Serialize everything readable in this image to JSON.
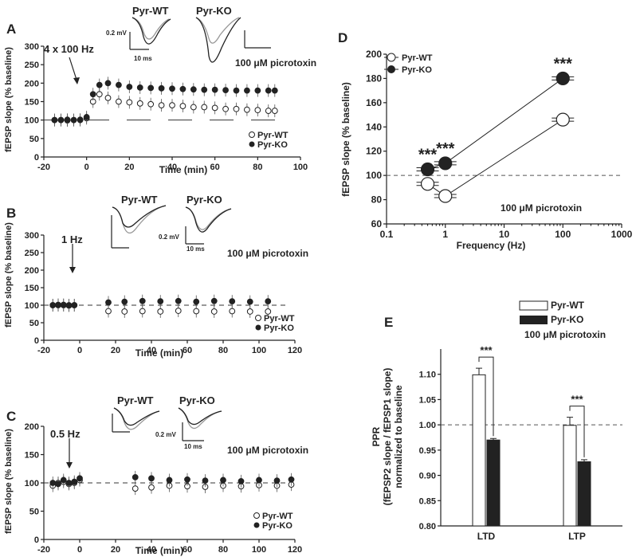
{
  "panels": {
    "A": {
      "letter": "A",
      "stim": "4 x 100 Hz",
      "drug": "100 μM picrotoxin",
      "ylabel": "fEPSP slope (% baseline)",
      "xlabel": "Time (min)",
      "legend": [
        "Pyr-WT",
        "Pyr-KO"
      ],
      "trace_labels": [
        "Pyr-WT",
        "Pyr-KO"
      ],
      "scale_v": "0.2 mV",
      "scale_t": "10 ms"
    },
    "B": {
      "letter": "B",
      "stim": "1 Hz",
      "drug": "100 μM picrotoxin",
      "ylabel": "fEPSP slope (% baseline)",
      "xlabel": "Time (min)",
      "legend": [
        "Pyr-WT",
        "Pyr-KO"
      ],
      "trace_labels": [
        "Pyr-WT",
        "Pyr-KO"
      ],
      "scale_v": "0.2 mV",
      "scale_t": "10 ms"
    },
    "C": {
      "letter": "C",
      "stim": "0.5 Hz",
      "drug": "100 μM picrotoxin",
      "ylabel": "fEPSP slope (% baseline)",
      "xlabel": "Time (min)",
      "legend": [
        "Pyr-WT",
        "Pyr-KO"
      ],
      "trace_labels": [
        "Pyr-WT",
        "Pyr-KO"
      ],
      "scale_v": "0.2 mV",
      "scale_t": "10 ms"
    },
    "D": {
      "letter": "D",
      "drug": "100 μM picrotoxin",
      "ylabel": "fEPSP slope (% baseline)",
      "xlabel": "Frequency (Hz)",
      "legend": [
        "Pyr-WT",
        "Pyr-KO"
      ],
      "sig": "***"
    },
    "E": {
      "letter": "E",
      "drug": "100 μM picrotoxin",
      "ylabel1": "PPR",
      "ylabel2": "(fEPSP2 slope / fEPSP1 slope)",
      "ylabel3": "normalized to baseline",
      "legend": [
        "Pyr-WT",
        "Pyr-KO"
      ],
      "sig": "***"
    }
  },
  "chart_data": [
    {
      "panel": "A",
      "type": "scatter",
      "xlim": [
        -20,
        100
      ],
      "ylim": [
        0,
        300
      ],
      "xticks": [
        -20,
        0,
        20,
        40,
        60,
        80,
        100
      ],
      "yticks": [
        0,
        50,
        100,
        150,
        200,
        250,
        300
      ],
      "series": [
        {
          "name": "Pyr-WT",
          "x": [
            -15,
            -12,
            -9,
            -6,
            -3,
            0,
            3,
            6,
            10,
            15,
            20,
            25,
            30,
            35,
            40,
            45,
            50,
            55,
            60,
            65,
            70,
            75,
            80,
            85,
            88
          ],
          "y": [
            100,
            100,
            99,
            100,
            101,
            105,
            150,
            170,
            160,
            150,
            148,
            145,
            143,
            140,
            140,
            138,
            135,
            135,
            133,
            130,
            130,
            128,
            127,
            125,
            125
          ]
        },
        {
          "name": "Pyr-KO",
          "x": [
            -15,
            -12,
            -9,
            -6,
            -3,
            0,
            3,
            6,
            10,
            15,
            20,
            25,
            30,
            35,
            40,
            45,
            50,
            55,
            60,
            65,
            70,
            75,
            80,
            85,
            88
          ],
          "y": [
            100,
            100,
            101,
            100,
            100,
            108,
            170,
            195,
            200,
            195,
            190,
            188,
            187,
            186,
            185,
            184,
            183,
            182,
            182,
            181,
            180,
            180,
            180,
            180,
            180
          ]
        }
      ],
      "reference": 100
    },
    {
      "panel": "B",
      "type": "scatter",
      "xlim": [
        -20,
        120
      ],
      "ylim": [
        0,
        300
      ],
      "xticks": [
        -20,
        0,
        20,
        40,
        60,
        80,
        100,
        120
      ],
      "yticks": [
        0,
        50,
        100,
        150,
        200,
        250,
        300
      ],
      "series": [
        {
          "name": "Pyr-WT",
          "x": [
            -15,
            -12,
            -9,
            -6,
            -3,
            16,
            25,
            35,
            45,
            55,
            65,
            75,
            85,
            95,
            105
          ],
          "y": [
            100,
            101,
            100,
            99,
            100,
            83,
            82,
            83,
            82,
            84,
            83,
            82,
            83,
            82,
            82
          ]
        },
        {
          "name": "Pyr-KO",
          "x": [
            -15,
            -12,
            -9,
            -6,
            -3,
            16,
            25,
            35,
            45,
            55,
            65,
            75,
            85,
            95,
            105
          ],
          "y": [
            100,
            100,
            101,
            100,
            100,
            108,
            110,
            112,
            111,
            112,
            110,
            112,
            111,
            110,
            111
          ]
        }
      ],
      "reference": 100
    },
    {
      "panel": "C",
      "type": "scatter",
      "xlim": [
        -20,
        120
      ],
      "ylim": [
        0,
        200
      ],
      "xticks": [
        -20,
        0,
        20,
        40,
        60,
        80,
        100,
        120
      ],
      "yticks": [
        0,
        50,
        100,
        150,
        200
      ],
      "series": [
        {
          "name": "Pyr-WT",
          "x": [
            -15,
            -12,
            -9,
            -6,
            -3,
            0,
            31,
            40,
            50,
            60,
            70,
            80,
            90,
            100,
            110,
            118
          ],
          "y": [
            95,
            100,
            102,
            98,
            100,
            105,
            90,
            92,
            95,
            94,
            93,
            95,
            94,
            96,
            95,
            97
          ]
        },
        {
          "name": "Pyr-KO",
          "x": [
            -15,
            -12,
            -9,
            -6,
            -3,
            0,
            31,
            40,
            50,
            60,
            70,
            80,
            90,
            100,
            110,
            118
          ],
          "y": [
            100,
            98,
            105,
            100,
            102,
            108,
            110,
            108,
            105,
            106,
            104,
            105,
            103,
            105,
            104,
            106
          ]
        }
      ],
      "reference": 100
    },
    {
      "panel": "D",
      "type": "line",
      "xscale": "log",
      "xlim": [
        0.1,
        1000
      ],
      "ylim": [
        60,
        200
      ],
      "xticks": [
        0.1,
        1,
        10,
        100,
        1000
      ],
      "yticks": [
        60,
        80,
        100,
        120,
        140,
        160,
        180,
        200
      ],
      "x": [
        0.5,
        1,
        100
      ],
      "series": [
        {
          "name": "Pyr-WT",
          "values": [
            93,
            83,
            146
          ]
        },
        {
          "name": "Pyr-KO",
          "values": [
            105,
            110,
            180
          ]
        }
      ],
      "reference": 100
    },
    {
      "panel": "E",
      "type": "bar",
      "categories": [
        "LTD",
        "LTP"
      ],
      "ylim": [
        0.8,
        1.15
      ],
      "yticks": [
        0.8,
        0.85,
        0.9,
        0.95,
        1.0,
        1.05,
        1.1
      ],
      "series": [
        {
          "name": "Pyr-WT",
          "values": [
            1.099,
            0.999
          ],
          "errors": [
            0.013,
            0.016
          ]
        },
        {
          "name": "Pyr-KO",
          "values": [
            0.97,
            0.927
          ],
          "errors": [
            0.003,
            0.004
          ]
        }
      ],
      "reference": 1.0
    }
  ]
}
